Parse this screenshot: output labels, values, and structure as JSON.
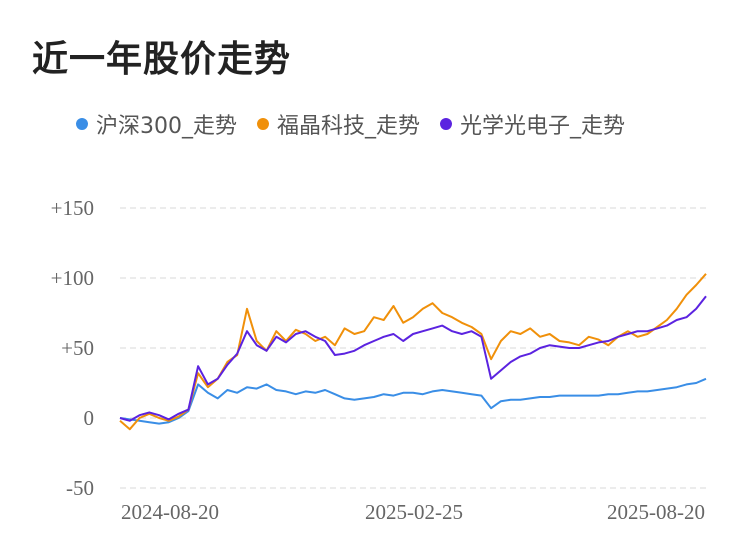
{
  "chart_data": {
    "type": "line",
    "title": "近一年股价走势",
    "legend_position": "top",
    "grid": true,
    "ylim": [
      -50,
      150
    ],
    "y_ticks": [
      {
        "value": 150,
        "label": "+150"
      },
      {
        "value": 100,
        "label": "+100"
      },
      {
        "value": 50,
        "label": "+50"
      },
      {
        "value": 0,
        "label": "0"
      },
      {
        "value": -50,
        "label": "-50"
      }
    ],
    "x_ticks": [
      "2024-08-20",
      "2025-02-25",
      "2025-08-20"
    ],
    "x_index_range": [
      0,
      60
    ],
    "series": [
      {
        "name": "沪深300_走势",
        "color": "#3a8ee6",
        "values": [
          0,
          -1,
          -2,
          -3,
          -4,
          -3,
          0,
          5,
          24,
          18,
          14,
          20,
          18,
          22,
          21,
          24,
          20,
          19,
          17,
          19,
          18,
          20,
          17,
          14,
          13,
          14,
          15,
          17,
          16,
          18,
          18,
          17,
          19,
          20,
          19,
          18,
          17,
          16,
          7,
          12,
          13,
          13,
          14,
          15,
          15,
          16,
          16,
          16,
          16,
          16,
          17,
          17,
          18,
          19,
          19,
          20,
          21,
          22,
          24,
          25,
          28
        ]
      },
      {
        "name": "福晶科技_走势",
        "color": "#f0900a",
        "values": [
          -2,
          -8,
          0,
          3,
          0,
          -2,
          1,
          6,
          32,
          22,
          28,
          40,
          45,
          78,
          55,
          48,
          62,
          55,
          63,
          60,
          55,
          58,
          52,
          64,
          60,
          62,
          72,
          70,
          80,
          68,
          72,
          78,
          82,
          75,
          72,
          68,
          65,
          60,
          42,
          55,
          62,
          60,
          64,
          58,
          60,
          55,
          54,
          52,
          58,
          56,
          52,
          58,
          62,
          58,
          60,
          65,
          70,
          78,
          88,
          95,
          103
        ]
      },
      {
        "name": "光学光电子_走势",
        "color": "#5b23e0",
        "values": [
          0,
          -2,
          2,
          4,
          2,
          -1,
          3,
          6,
          37,
          24,
          28,
          38,
          46,
          62,
          52,
          48,
          58,
          54,
          60,
          62,
          58,
          55,
          45,
          46,
          48,
          52,
          55,
          58,
          60,
          55,
          60,
          62,
          64,
          66,
          62,
          60,
          62,
          58,
          28,
          34,
          40,
          44,
          46,
          50,
          52,
          51,
          50,
          50,
          52,
          54,
          55,
          58,
          60,
          62,
          62,
          64,
          66,
          70,
          72,
          78,
          87
        ]
      }
    ]
  }
}
